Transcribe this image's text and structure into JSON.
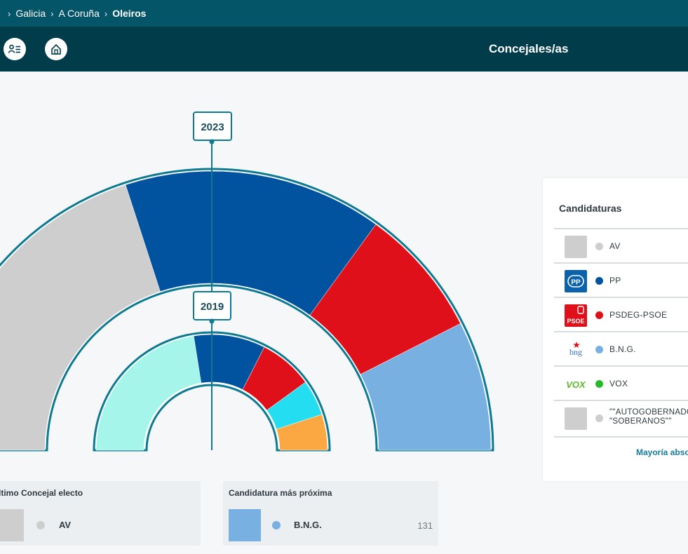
{
  "breadcrumb": {
    "items": [
      "Galicia",
      "A Coruña"
    ],
    "current": "Oleiros",
    "separator": "›"
  },
  "toolbar": {
    "title": "Concejales/as",
    "buttons": [
      "candidates-list-icon",
      "home-results-icon"
    ]
  },
  "chart_data": {
    "type": "hemicycle",
    "rings": [
      {
        "label": "2023",
        "series": [
          {
            "party": "AV",
            "fraction": 0.4,
            "color": "#cecece"
          },
          {
            "party": "PP",
            "fraction": 0.3,
            "color": "#02539f"
          },
          {
            "party": "PSDEG-PSOE",
            "fraction": 0.15,
            "color": "#e0101b"
          },
          {
            "party": "B.N.G.",
            "fraction": 0.15,
            "color": "#77b0e1"
          }
        ]
      },
      {
        "label": "2019",
        "series": [
          {
            "party": "",
            "fraction": 0.45,
            "color": "#a6f5ea"
          },
          {
            "party": "PP",
            "fraction": 0.2,
            "color": "#02539f"
          },
          {
            "party": "PSDEG-PSOE",
            "fraction": 0.15,
            "color": "#e0101b"
          },
          {
            "party": "",
            "fraction": 0.1,
            "color": "#25ddf0"
          },
          {
            "party": "",
            "fraction": 0.1,
            "color": "#fba843"
          }
        ]
      }
    ]
  },
  "legend": {
    "title": "Candidaturas",
    "items": [
      {
        "name": "AV",
        "color": "#cecece",
        "logo": "gray-placeholder-logo"
      },
      {
        "name": "PP",
        "color": "#02539f",
        "logo": "pp-logo"
      },
      {
        "name": "PSDEG-PSOE",
        "color": "#e0101b",
        "logo": "psoe-logo"
      },
      {
        "name": "B.N.G.",
        "color": "#77b0e1",
        "logo": "bng-logo"
      },
      {
        "name": "VOX",
        "color": "#29b82c",
        "logo": "vox-logo"
      },
      {
        "name_line1": "\"\"AUTOGOBERNADO",
        "name_line2": "\"SOBERANOS\"\"",
        "color": "#cecece",
        "logo": "gray-placeholder-logo"
      }
    ],
    "logo_text": {
      "pp": "PP",
      "psoe": "PSOE",
      "bng": "bng",
      "vox": "VOX"
    },
    "footer": "Mayoría abso"
  },
  "cards": {
    "last_elected": {
      "title": "ltimo Concejal electo",
      "party": "AV",
      "color": "#cecece"
    },
    "nearest": {
      "title": "Candidatura más próxima",
      "party": "B.N.G.",
      "color": "#77b0e1",
      "votes": "131"
    }
  }
}
